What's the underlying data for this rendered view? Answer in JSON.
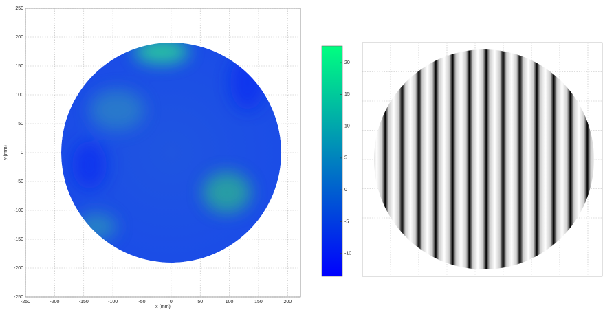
{
  "chart_data": [
    {
      "type": "heatmap",
      "xlabel": "x (mm)",
      "ylabel": "y (mm)",
      "xlim": [
        -250,
        222
      ],
      "ylim": [
        -250,
        250
      ],
      "xticks": [
        -250,
        -200,
        -150,
        -100,
        -50,
        0,
        50,
        100,
        150,
        200
      ],
      "yticks": [
        -250,
        -200,
        -150,
        -100,
        -50,
        0,
        50,
        100,
        150,
        200,
        250
      ],
      "grid": true,
      "colorbar": {
        "lim": [
          -13.6,
          22.6
        ],
        "ticks": [
          -10,
          -5,
          0,
          5,
          10,
          15,
          20
        ],
        "colors": [
          "#0000ff",
          "#00ff80"
        ]
      }
    },
    {
      "type": "fringe",
      "grid": true
    }
  ]
}
